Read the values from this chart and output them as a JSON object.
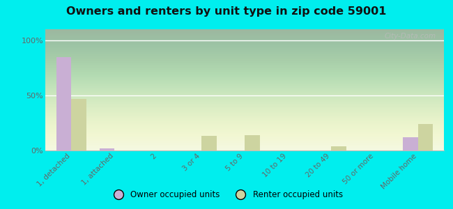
{
  "title": "Owners and renters by unit type in zip code 59001",
  "categories": [
    "1, detached",
    "1, attached",
    "2",
    "3 or 4",
    "5 to 9",
    "10 to 19",
    "20 to 49",
    "50 or more",
    "Mobile home"
  ],
  "owner_values": [
    85,
    2,
    0,
    0,
    0,
    0,
    0,
    0,
    12
  ],
  "renter_values": [
    47,
    0,
    0,
    13,
    14,
    0,
    4,
    0,
    24
  ],
  "owner_color": "#c9afd4",
  "renter_color": "#cdd4a0",
  "background_color": "#00eeee",
  "yticks": [
    0,
    50,
    100
  ],
  "ytick_labels": [
    "0%",
    "50%",
    "100%"
  ],
  "bar_width": 0.35,
  "legend_owner": "Owner occupied units",
  "legend_renter": "Renter occupied units",
  "watermark": "City-Data.com"
}
